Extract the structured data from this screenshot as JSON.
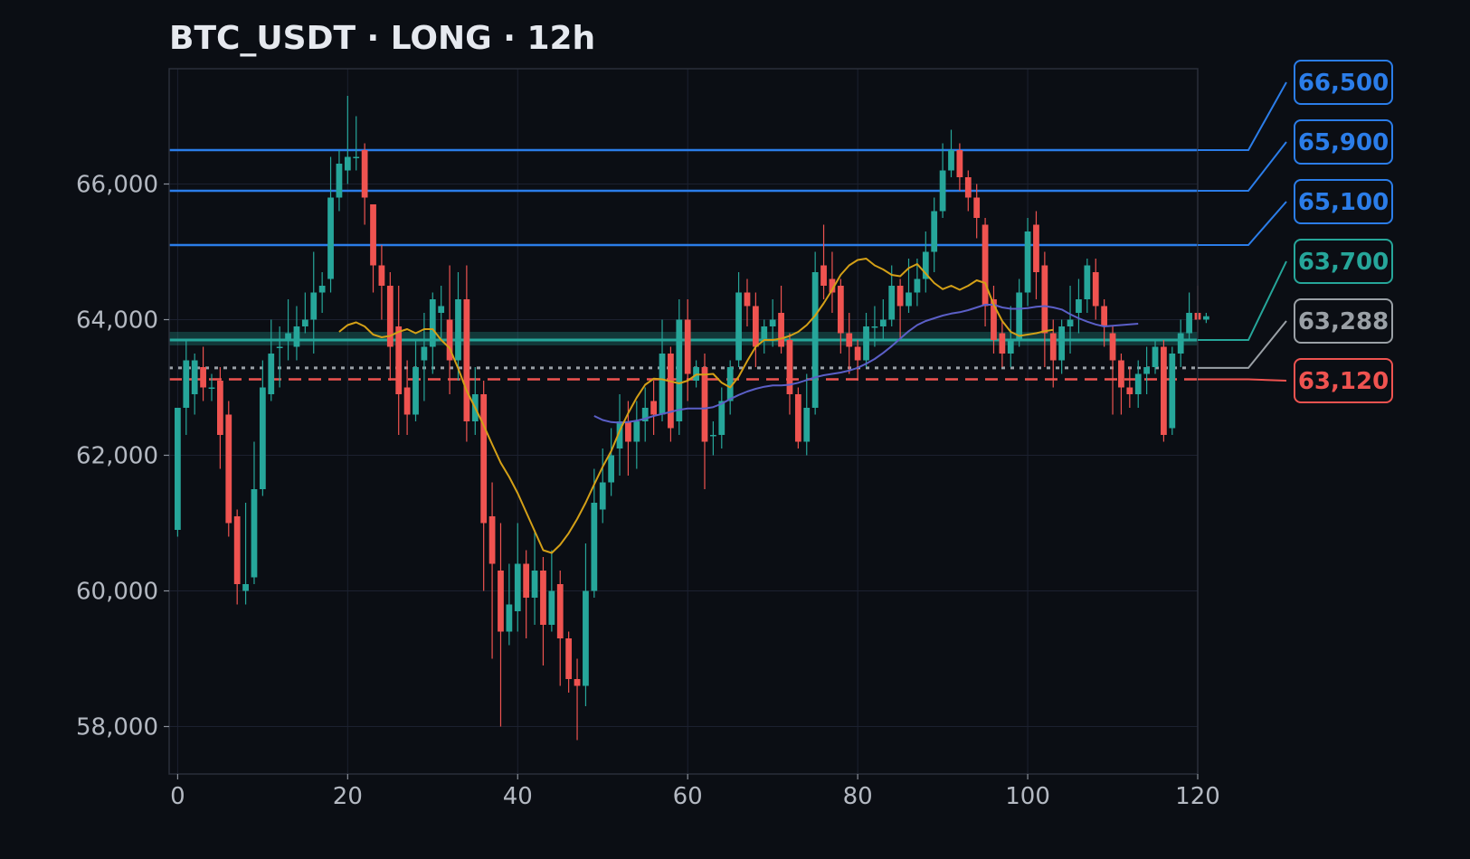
{
  "chart_data": {
    "type": "candlestick",
    "title": "BTC_USDT · LONG · 12h",
    "xlabel": "",
    "ylabel": "",
    "xlim": [
      -1,
      120
    ],
    "ylim": [
      57300,
      67700
    ],
    "x_ticks": [
      0,
      20,
      40,
      60,
      80,
      100,
      120
    ],
    "x_tick_labels": [
      "0",
      "20",
      "40",
      "60",
      "80",
      "100",
      "120"
    ],
    "y_ticks": [
      58000,
      60000,
      62000,
      64000,
      66000
    ],
    "y_tick_labels": [
      "58,000",
      "60,000",
      "62,000",
      "64,000",
      "66,000"
    ],
    "grid": true,
    "colors": {
      "background": "#0b0e14",
      "up": "#26a69a",
      "down": "#ef5350",
      "target": "#2b7de9",
      "entry": "#26a69a",
      "current": "#9aa0a6",
      "stop": "#ef5350",
      "ma_fast": "#d4a017",
      "ma_slow": "#5b5fc7"
    },
    "levels": [
      {
        "label": "66,500",
        "value": 66500,
        "kind": "target"
      },
      {
        "label": "65,900",
        "value": 65900,
        "kind": "target"
      },
      {
        "label": "65,100",
        "value": 65100,
        "kind": "target"
      },
      {
        "label": "63,700",
        "value": 63700,
        "kind": "entry"
      },
      {
        "label": "63,288",
        "value": 63288,
        "kind": "current"
      },
      {
        "label": "63,120",
        "value": 63120,
        "kind": "stop"
      }
    ],
    "entry_zone": [
      63620,
      63820
    ],
    "candles": [
      [
        60900,
        62700,
        60800,
        62700
      ],
      [
        62700,
        63400,
        62300,
        63700
      ],
      [
        62900,
        63400,
        62600,
        63500
      ],
      [
        63300,
        63000,
        62800,
        63600
      ],
      [
        63000,
        63000,
        62800,
        63200
      ],
      [
        63100,
        62300,
        61800,
        63300
      ],
      [
        62600,
        61000,
        60800,
        62800
      ],
      [
        61100,
        60100,
        59800,
        61200
      ],
      [
        60000,
        60100,
        59800,
        61300
      ],
      [
        60200,
        61500,
        60100,
        62200
      ],
      [
        61500,
        63000,
        61400,
        63400
      ],
      [
        62900,
        63500,
        62800,
        64000
      ],
      [
        63600,
        63600,
        63000,
        63900
      ],
      [
        63700,
        63800,
        63400,
        64300
      ],
      [
        63600,
        63900,
        63400,
        64200
      ],
      [
        63900,
        64000,
        63800,
        64400
      ],
      [
        64000,
        64400,
        63500,
        65000
      ],
      [
        64400,
        64500,
        64100,
        64700
      ],
      [
        64600,
        65800,
        64400,
        66400
      ],
      [
        65800,
        66300,
        65600,
        66500
      ],
      [
        66200,
        66400,
        66000,
        67300
      ],
      [
        66400,
        66400,
        66200,
        67000
      ],
      [
        66500,
        65800,
        65400,
        66600
      ],
      [
        65700,
        64800,
        64400,
        65700
      ],
      [
        64800,
        64500,
        64000,
        65100
      ],
      [
        64500,
        63600,
        63100,
        64700
      ],
      [
        63900,
        62900,
        62300,
        64500
      ],
      [
        63000,
        62600,
        62300,
        63400
      ],
      [
        62600,
        63300,
        62500,
        63700
      ],
      [
        63400,
        63600,
        62800,
        64100
      ],
      [
        63600,
        64300,
        63200,
        64400
      ],
      [
        64100,
        64200,
        63700,
        64500
      ],
      [
        64000,
        63400,
        62900,
        64800
      ],
      [
        63400,
        64300,
        63100,
        64700
      ],
      [
        64300,
        62500,
        62200,
        64800
      ],
      [
        62500,
        62900,
        62300,
        63300
      ],
      [
        62900,
        61000,
        60000,
        63100
      ],
      [
        61100,
        60400,
        59000,
        61600
      ],
      [
        60300,
        59400,
        58000,
        61000
      ],
      [
        59400,
        59800,
        59200,
        60400
      ],
      [
        59700,
        60400,
        59400,
        61000
      ],
      [
        60400,
        59900,
        59300,
        60600
      ],
      [
        59900,
        60300,
        59500,
        60900
      ],
      [
        60300,
        59500,
        58900,
        60500
      ],
      [
        59500,
        60000,
        59400,
        60600
      ],
      [
        60100,
        59300,
        58600,
        60300
      ],
      [
        59300,
        58700,
        58500,
        59400
      ],
      [
        58700,
        58600,
        57800,
        59000
      ],
      [
        58600,
        60000,
        58300,
        60700
      ],
      [
        60000,
        61300,
        59900,
        61800
      ],
      [
        61200,
        61600,
        61000,
        62100
      ],
      [
        61600,
        62000,
        61400,
        62400
      ],
      [
        62100,
        62500,
        61700,
        62900
      ],
      [
        62500,
        62200,
        61700,
        62800
      ],
      [
        62200,
        62500,
        61800,
        62800
      ],
      [
        62500,
        62700,
        62200,
        63000
      ],
      [
        62800,
        62600,
        62300,
        63100
      ],
      [
        62600,
        63500,
        62500,
        64000
      ],
      [
        63500,
        62400,
        62200,
        63600
      ],
      [
        62500,
        64000,
        62300,
        64300
      ],
      [
        64000,
        63200,
        62800,
        64300
      ],
      [
        63100,
        63300,
        63000,
        63400
      ],
      [
        63300,
        62200,
        61500,
        63500
      ],
      [
        62300,
        62300,
        62000,
        62500
      ],
      [
        62300,
        62800,
        62100,
        63000
      ],
      [
        62800,
        63300,
        62600,
        63400
      ],
      [
        63400,
        64400,
        63300,
        64700
      ],
      [
        64400,
        64200,
        63900,
        64600
      ],
      [
        64200,
        63600,
        63300,
        64400
      ],
      [
        63700,
        63900,
        63500,
        64000
      ],
      [
        63900,
        64000,
        63600,
        64300
      ],
      [
        64100,
        63600,
        63500,
        64500
      ],
      [
        63700,
        62900,
        62600,
        63800
      ],
      [
        62900,
        62200,
        62100,
        63000
      ],
      [
        62200,
        62700,
        62000,
        63200
      ],
      [
        62700,
        64700,
        62600,
        65000
      ],
      [
        64800,
        64500,
        64300,
        65400
      ],
      [
        64600,
        64400,
        64100,
        65000
      ],
      [
        64500,
        63800,
        63500,
        64600
      ],
      [
        63800,
        63600,
        63200,
        64100
      ],
      [
        63600,
        63400,
        63100,
        63700
      ],
      [
        63400,
        63900,
        63300,
        64100
      ],
      [
        63900,
        63900,
        63600,
        64200
      ],
      [
        63900,
        64000,
        63700,
        64300
      ],
      [
        64000,
        64500,
        63900,
        64800
      ],
      [
        64500,
        64200,
        63700,
        64600
      ],
      [
        64200,
        64400,
        64100,
        64900
      ],
      [
        64400,
        64600,
        64200,
        64900
      ],
      [
        64600,
        65000,
        64400,
        65300
      ],
      [
        65000,
        65600,
        64700,
        65800
      ],
      [
        65600,
        66200,
        65500,
        66600
      ],
      [
        66200,
        66500,
        66100,
        66800
      ],
      [
        66500,
        66100,
        65900,
        66600
      ],
      [
        66100,
        65800,
        65600,
        66200
      ],
      [
        65800,
        65500,
        65200,
        66000
      ],
      [
        65400,
        64200,
        63900,
        65500
      ],
      [
        64300,
        63700,
        63500,
        64500
      ],
      [
        63800,
        63500,
        63300,
        64000
      ],
      [
        63500,
        63700,
        63300,
        64200
      ],
      [
        63700,
        64400,
        63600,
        64600
      ],
      [
        64400,
        65300,
        64200,
        65500
      ],
      [
        65400,
        64700,
        64300,
        65600
      ],
      [
        64800,
        63800,
        63300,
        65000
      ],
      [
        63800,
        63400,
        63000,
        64000
      ],
      [
        63400,
        63900,
        63200,
        64000
      ],
      [
        63900,
        64000,
        63500,
        64500
      ],
      [
        64100,
        64300,
        63800,
        64600
      ],
      [
        64300,
        64800,
        64100,
        64900
      ],
      [
        64700,
        64200,
        64000,
        64900
      ],
      [
        64200,
        63900,
        63600,
        64300
      ],
      [
        63800,
        63400,
        62600,
        63900
      ],
      [
        63400,
        63000,
        62600,
        63500
      ],
      [
        63000,
        62900,
        62700,
        63300
      ],
      [
        62900,
        63200,
        62700,
        63400
      ],
      [
        63200,
        63300,
        62900,
        63600
      ],
      [
        63300,
        63600,
        63200,
        63700
      ],
      [
        63600,
        62300,
        62200,
        63700
      ],
      [
        62400,
        63500,
        62300,
        63600
      ],
      [
        63500,
        63800,
        63300,
        64000
      ],
      [
        63800,
        64100,
        63700,
        64400
      ],
      [
        64100,
        64000,
        63800,
        64500
      ],
      [
        64000,
        64050,
        63950,
        64100
      ]
    ],
    "ma_fast_start": 19,
    "ma_fast": [
      63820,
      63920,
      63960,
      63900,
      63780,
      63740,
      63760,
      63820,
      63860,
      63800,
      63860,
      63860,
      63700,
      63580,
      63280,
      62950,
      62700,
      62440,
      62160,
      61890,
      61680,
      61440,
      61160,
      60880,
      60600,
      60560,
      60680,
      60850,
      61060,
      61300,
      61570,
      61830,
      62060,
      62360,
      62620,
      62850,
      63040,
      63130,
      63120,
      63090,
      63060,
      63100,
      63190,
      63190,
      63200,
      63070,
      63000,
      63160,
      63390,
      63600,
      63700,
      63700,
      63720,
      63760,
      63820,
      63920,
      64060,
      64240,
      64440,
      64660,
      64800,
      64880,
      64900,
      64800,
      64740,
      64660,
      64640,
      64760,
      64820,
      64680,
      64540,
      64450,
      64500,
      64440,
      64500,
      64580,
      64540,
      64220,
      63980,
      63820,
      63760,
      63780,
      63800,
      63830,
      63850
    ],
    "ma_slow_start": 49,
    "ma_slow": [
      62580,
      62520,
      62490,
      62480,
      62490,
      62510,
      62540,
      62580,
      62610,
      62640,
      62670,
      62690,
      62690,
      62690,
      62710,
      62760,
      62830,
      62890,
      62940,
      62980,
      63010,
      63030,
      63030,
      63040,
      63070,
      63110,
      63150,
      63180,
      63200,
      63220,
      63250,
      63290,
      63350,
      63420,
      63510,
      63610,
      63720,
      63830,
      63920,
      63980,
      64020,
      64060,
      64090,
      64110,
      64140,
      64180,
      64220,
      64220,
      64180,
      64160,
      64160,
      64170,
      64190,
      64200,
      64180,
      64150,
      64080,
      64020,
      63970,
      63930,
      63900,
      63910,
      63920,
      63930,
      63940
    ]
  }
}
